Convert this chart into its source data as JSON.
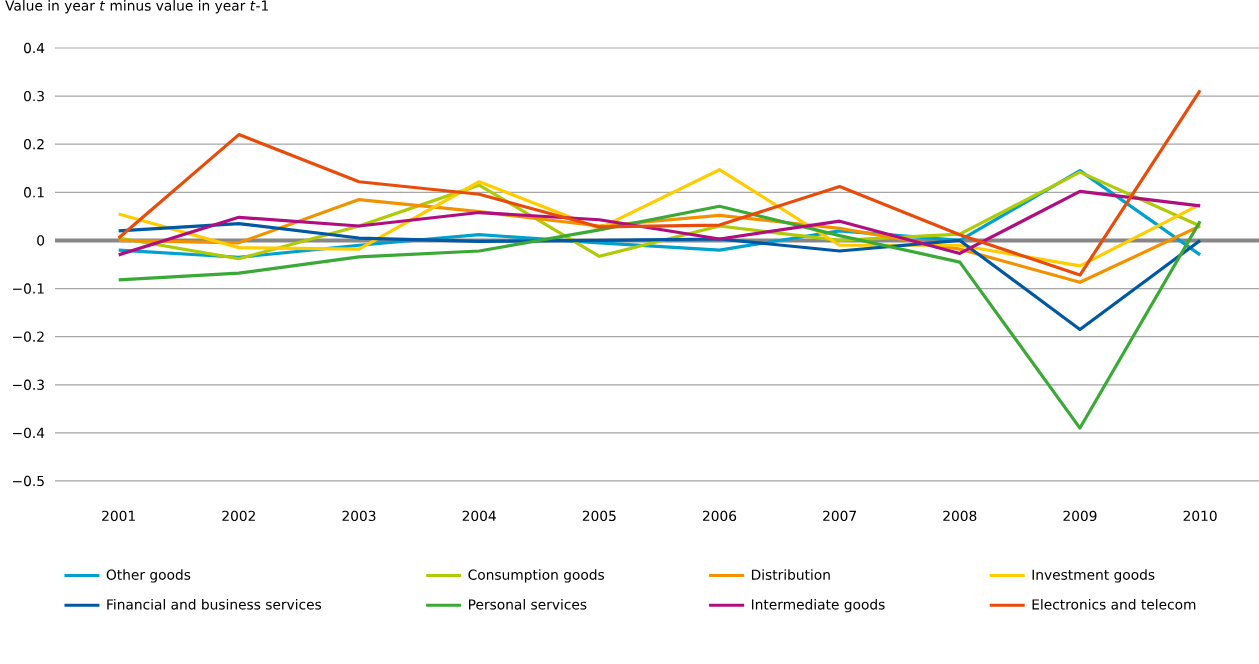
{
  "chart_data": {
    "type": "line",
    "ylabel": "Value in year *t* minus value in year *t*-1",
    "categories": [
      "2001",
      "2002",
      "2003",
      "2004",
      "2005",
      "2006",
      "2007",
      "2008",
      "2009",
      "2010"
    ],
    "series": [
      {
        "name": "Other goods",
        "color": "#00a1cd",
        "values": [
          -0.02,
          -0.035,
          -0.01,
          0.012,
          -0.005,
          -0.02,
          0.02,
          0.0,
          0.145,
          -0.03
        ]
      },
      {
        "name": "Consumption goods",
        "color": "#afcb05",
        "values": [
          0.005,
          -0.038,
          0.03,
          0.115,
          -0.033,
          0.03,
          0.0,
          0.013,
          0.142,
          0.03
        ]
      },
      {
        "name": "Distribution",
        "color": "#f39200",
        "values": [
          0.0,
          -0.005,
          0.085,
          0.06,
          0.03,
          0.052,
          0.025,
          -0.018,
          -0.087,
          0.03
        ]
      },
      {
        "name": "Investment goods",
        "color": "#ffcc00",
        "values": [
          0.055,
          -0.015,
          -0.018,
          0.122,
          0.025,
          0.147,
          -0.01,
          -0.01,
          -0.053,
          0.075
        ]
      },
      {
        "name": "Financial and business services",
        "color": "#0058a3",
        "values": [
          0.02,
          0.035,
          0.005,
          -0.002,
          0.0,
          0.003,
          -0.022,
          0.0,
          -0.185,
          0.0
        ]
      },
      {
        "name": "Personal services",
        "color": "#3aa935",
        "values": [
          -0.082,
          -0.068,
          -0.034,
          -0.022,
          0.022,
          0.071,
          0.01,
          -0.045,
          -0.39,
          0.04
        ]
      },
      {
        "name": "Intermediate goods",
        "color": "#af0e80",
        "values": [
          -0.03,
          0.048,
          0.03,
          0.058,
          0.043,
          0.003,
          0.04,
          -0.027,
          0.102,
          0.072
        ]
      },
      {
        "name": "Electronics and telecom",
        "color": "#e94c0a",
        "values": [
          0.005,
          0.22,
          0.122,
          0.096,
          0.028,
          0.032,
          0.112,
          0.012,
          -0.072,
          0.312
        ]
      }
    ],
    "ylim": [
      -0.5,
      0.4
    ],
    "yticks": [
      {
        "value": -0.5,
        "label": "−0.5"
      },
      {
        "value": -0.4,
        "label": "−0.4"
      },
      {
        "value": -0.3,
        "label": "−0.3"
      },
      {
        "value": -0.2,
        "label": "−0.2"
      },
      {
        "value": -0.1,
        "label": "−0.1"
      },
      0,
      0.1,
      0.2,
      0.3,
      0.4
    ],
    "grid": "y",
    "legend": "bottom",
    "ref_lines": [
      {
        "axis": "y",
        "value": 0,
        "color": "#878787"
      }
    ]
  }
}
